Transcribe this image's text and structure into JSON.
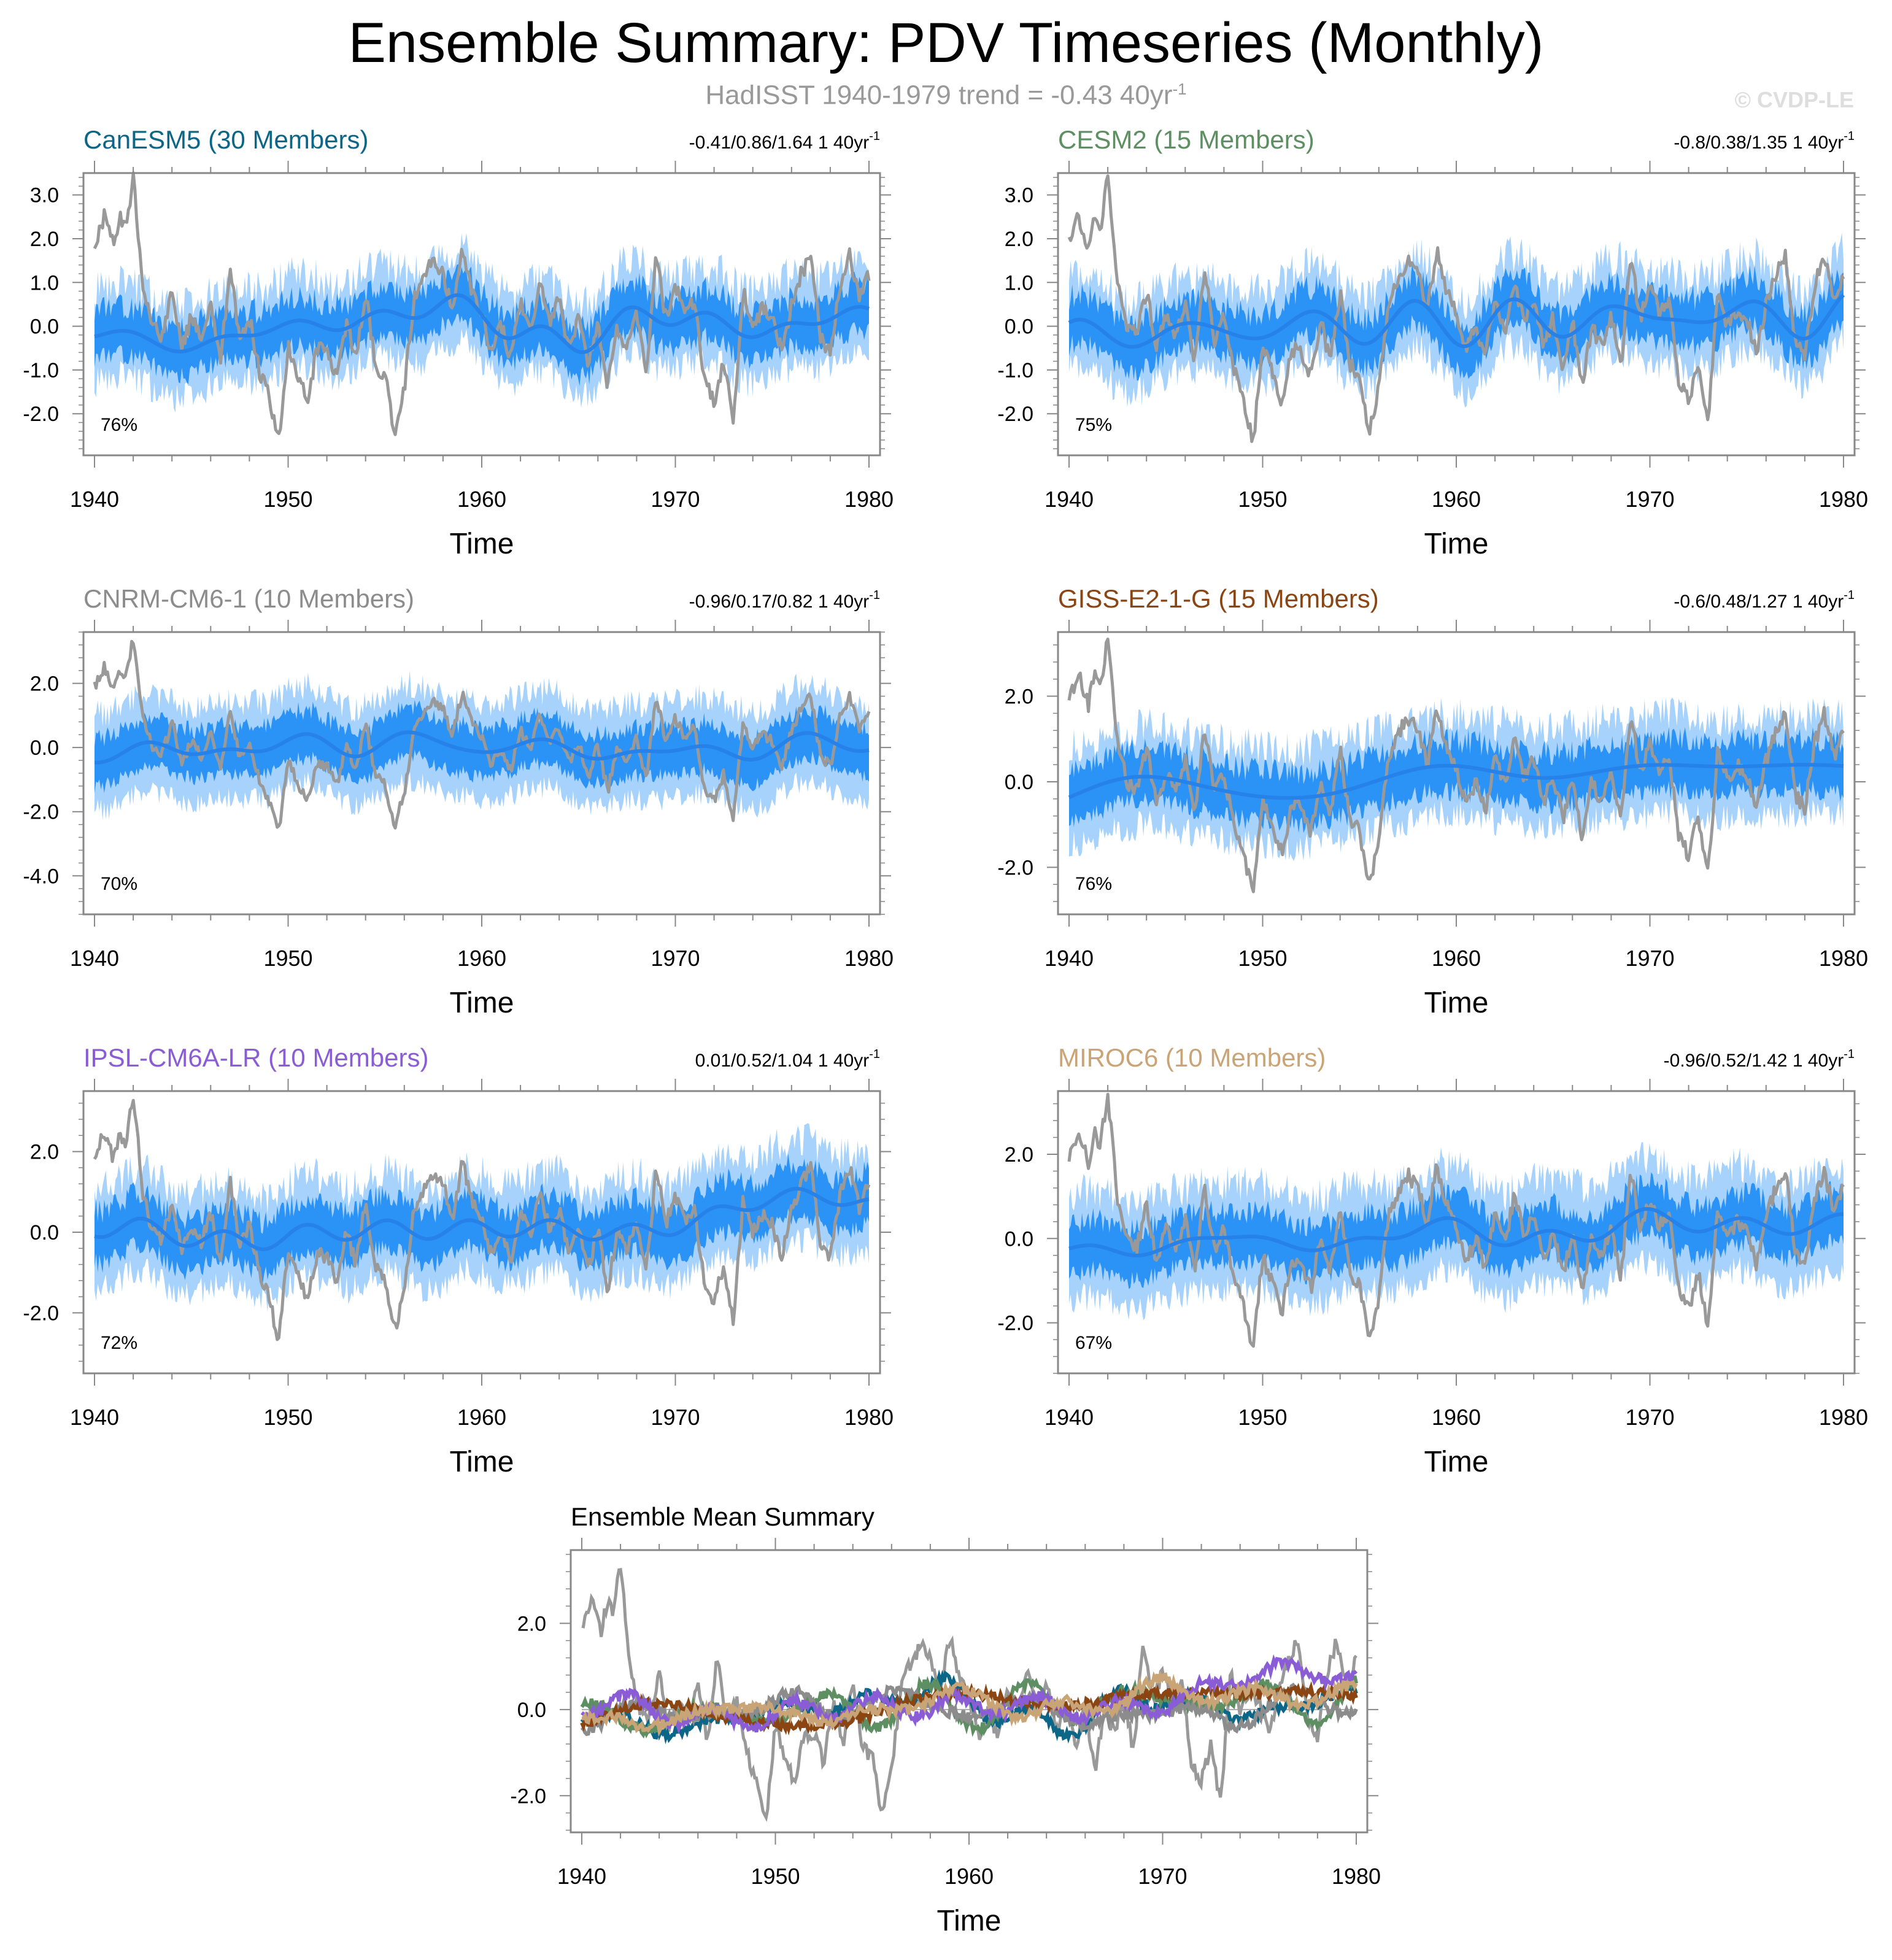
{
  "header": {
    "title": "Ensemble Summary: PDV Timeseries (Monthly)",
    "subtitle": "HadISST 1940-1979 trend = -0.43 40yr",
    "subtitle_sup": "-1",
    "copyright": "© CVDP-LE"
  },
  "colors": {
    "observations": "#999999",
    "band_outer": "#a7d2fb",
    "band_inner": "#2b92f6",
    "ens_mean": "#2681e8",
    "zero_line": "#aaaaaa"
  },
  "chart_data": [
    {
      "type": "line",
      "id": "canesm5",
      "title": "CanESM5 (30 Members)",
      "title_color": "#0b6688",
      "trend_text": "-0.41/0.86/1.64 1 40yr",
      "trend_sup": "-1",
      "percent_label": "76%",
      "xlabel": "Time",
      "xlim": [
        1940,
        1980
      ],
      "xticks": [
        1940,
        1950,
        1960,
        1970,
        1980
      ],
      "xtick_labels": [
        "1940",
        "1950",
        "1960",
        "1970",
        "1980"
      ],
      "ylim": [
        -2.95,
        3.5
      ],
      "yticks": [
        3.0,
        2.0,
        1.0,
        0.0,
        -1.0,
        -2.0
      ],
      "ytick_labels": [
        "3.0",
        "2.0",
        "1.0",
        "0.0",
        "-1.0",
        "-2.0"
      ],
      "ens_mean_trend": [
        -0.25,
        0.3
      ],
      "inner_halfwidth": 0.55,
      "outer_halfwidth": 1.05,
      "seed": 11
    },
    {
      "type": "line",
      "id": "cesm2",
      "title": "CESM2 (15 Members)",
      "title_color": "#5d8f62",
      "trend_text": "-0.8/0.38/1.35 1 40yr",
      "trend_sup": "-1",
      "percent_label": "75%",
      "xlabel": "Time",
      "xlim": [
        1940,
        1980
      ],
      "xticks": [
        1940,
        1950,
        1960,
        1970,
        1980
      ],
      "xtick_labels": [
        "1940",
        "1950",
        "1960",
        "1970",
        "1980"
      ],
      "ylim": [
        -2.95,
        3.5
      ],
      "yticks": [
        3.0,
        2.0,
        1.0,
        0.0,
        -1.0,
        -2.0
      ],
      "ytick_labels": [
        "3.0",
        "2.0",
        "1.0",
        "0.0",
        "-1.0",
        "-2.0"
      ],
      "ens_mean_trend": [
        -0.15,
        0.3
      ],
      "inner_halfwidth": 0.55,
      "outer_halfwidth": 1.05,
      "seed": 23
    },
    {
      "type": "line",
      "id": "cnrm",
      "title": "CNRM-CM6-1 (10 Members)",
      "title_color": "#8c8c8c",
      "trend_text": "-0.96/0.17/0.82 1 40yr",
      "trend_sup": "-1",
      "percent_label": "70%",
      "xlabel": "Time",
      "xlim": [
        1940,
        1980
      ],
      "xticks": [
        1940,
        1950,
        1960,
        1970,
        1980
      ],
      "xtick_labels": [
        "1940",
        "1950",
        "1960",
        "1970",
        "1980"
      ],
      "ylim": [
        -5.2,
        3.6
      ],
      "yticks": [
        2.0,
        0.0,
        -2.0,
        -4.0
      ],
      "ytick_labels": [
        "2.0",
        "0.0",
        "-2.0",
        "-4.0"
      ],
      "ens_mean_trend": [
        -0.1,
        0.1
      ],
      "inner_halfwidth": 0.75,
      "outer_halfwidth": 1.5,
      "seed": 37
    },
    {
      "type": "line",
      "id": "giss",
      "title": "GISS-E2-1-G (15 Members)",
      "title_color": "#8b4513",
      "trend_text": "-0.6/0.48/1.27 1 40yr",
      "trend_sup": "-1",
      "percent_label": "76%",
      "xlabel": "Time",
      "xlim": [
        1940,
        1980
      ],
      "xticks": [
        1940,
        1950,
        1960,
        1970,
        1980
      ],
      "xtick_labels": [
        "1940",
        "1950",
        "1960",
        "1970",
        "1980"
      ],
      "ylim": [
        -3.1,
        3.5
      ],
      "yticks": [
        2.0,
        0.0,
        -2.0
      ],
      "ytick_labels": [
        "2.0",
        "0.0",
        "-2.0"
      ],
      "ens_mean_trend": [
        -0.25,
        0.45
      ],
      "inner_halfwidth": 0.6,
      "outer_halfwidth": 1.15,
      "seed": 41
    },
    {
      "type": "line",
      "id": "ipsl",
      "title": "IPSL-CM6A-LR (10 Members)",
      "title_color": "#8a5cd6",
      "trend_text": "0.01/0.52/1.04 1 40yr",
      "trend_sup": "-1",
      "percent_label": "72%",
      "xlabel": "Time",
      "xlim": [
        1940,
        1980
      ],
      "xticks": [
        1940,
        1950,
        1960,
        1970,
        1980
      ],
      "xtick_labels": [
        "1940",
        "1950",
        "1960",
        "1970",
        "1980"
      ],
      "ylim": [
        -3.5,
        3.5
      ],
      "yticks": [
        2.0,
        0.0,
        -2.0
      ],
      "ytick_labels": [
        "2.0",
        "0.0",
        "-2.0"
      ],
      "ens_mean_trend": [
        -0.3,
        0.55
      ],
      "inner_halfwidth": 0.65,
      "outer_halfwidth": 1.25,
      "seed": 53
    },
    {
      "type": "line",
      "id": "miroc6",
      "title": "MIROC6 (10 Members)",
      "title_color": "#c9a477",
      "trend_text": "-0.96/0.52/1.42 1 40yr",
      "trend_sup": "-1",
      "percent_label": "67%",
      "xlabel": "Time",
      "xlim": [
        1940,
        1980
      ],
      "xticks": [
        1940,
        1950,
        1960,
        1970,
        1980
      ],
      "xtick_labels": [
        "1940",
        "1950",
        "1960",
        "1970",
        "1980"
      ],
      "ylim": [
        -3.2,
        3.5
      ],
      "yticks": [
        2.0,
        0.0,
        -2.0
      ],
      "ytick_labels": [
        "2.0",
        "0.0",
        "-2.0"
      ],
      "ens_mean_trend": [
        -0.25,
        0.45
      ],
      "inner_halfwidth": 0.6,
      "outer_halfwidth": 1.25,
      "seed": 67
    },
    {
      "type": "line",
      "id": "summary",
      "title": "Ensemble Mean Summary",
      "title_color": "#000000",
      "xlabel": "Time",
      "xlim": [
        1940,
        1980
      ],
      "xticks": [
        1940,
        1950,
        1960,
        1970,
        1980
      ],
      "xtick_labels": [
        "1940",
        "1950",
        "1960",
        "1970",
        "1980"
      ],
      "ylim": [
        -2.85,
        3.7
      ],
      "yticks": [
        2.0,
        0.0,
        -2.0
      ],
      "ytick_labels": [
        "2.0",
        "0.0",
        "-2.0"
      ],
      "series": [
        {
          "name": "CanESM5",
          "color": "#0b6688",
          "seed": 11,
          "trend": [
            -0.25,
            0.3
          ]
        },
        {
          "name": "CESM2",
          "color": "#5d8f62",
          "seed": 23,
          "trend": [
            -0.15,
            0.3
          ]
        },
        {
          "name": "CNRM-CM6-1",
          "color": "#8c8c8c",
          "seed": 37,
          "trend": [
            -0.1,
            0.1
          ]
        },
        {
          "name": "GISS-E2-1-G",
          "color": "#8b4513",
          "seed": 41,
          "trend": [
            -0.25,
            0.45
          ]
        },
        {
          "name": "IPSL-CM6A-LR",
          "color": "#8a5cd6",
          "seed": 53,
          "trend": [
            -0.3,
            0.55
          ]
        },
        {
          "name": "MIROC6",
          "color": "#c9a477",
          "seed": 67,
          "trend": [
            -0.25,
            0.45
          ]
        }
      ]
    }
  ],
  "observations": {
    "name": "HadISST",
    "years": [
      1940.0,
      1940.5,
      1941.0,
      1941.3,
      1941.6,
      1942.0,
      1942.5,
      1943.0,
      1943.5,
      1944.0,
      1944.5,
      1945.0,
      1945.5,
      1946.0,
      1946.5,
      1947.0,
      1947.5,
      1948.0,
      1948.5,
      1949.0,
      1949.5,
      1950.0,
      1950.5,
      1951.0,
      1951.5,
      1952.0,
      1952.5,
      1953.0,
      1953.5,
      1954.0,
      1954.5,
      1955.0,
      1955.5,
      1956.0,
      1956.5,
      1957.0,
      1957.5,
      1958.0,
      1958.5,
      1959.0,
      1959.5,
      1960.0,
      1960.5,
      1961.0,
      1961.5,
      1962.0,
      1962.5,
      1963.0,
      1963.5,
      1964.0,
      1964.5,
      1965.0,
      1965.5,
      1966.0,
      1966.5,
      1967.0,
      1967.5,
      1968.0,
      1968.5,
      1969.0,
      1969.5,
      1970.0,
      1970.5,
      1971.0,
      1971.5,
      1972.0,
      1972.5,
      1973.0,
      1973.5,
      1974.0,
      1974.5,
      1975.0,
      1975.5,
      1976.0,
      1976.5,
      1977.0,
      1977.5,
      1978.0,
      1978.5,
      1979.0,
      1979.5,
      1980.0
    ],
    "values": [
      1.9,
      2.5,
      1.8,
      2.5,
      2.2,
      3.4,
      1.0,
      0.0,
      -0.2,
      0.8,
      -0.5,
      0.2,
      -0.3,
      0.5,
      -0.8,
      1.3,
      -0.3,
      0.2,
      -1.0,
      -1.6,
      -2.7,
      -0.4,
      -1.1,
      -1.7,
      -0.5,
      -0.6,
      -1.2,
      0.1,
      -0.8,
      0.8,
      -0.9,
      -1.1,
      -2.5,
      -1.4,
      0.6,
      1.1,
      1.5,
      1.2,
      0.4,
      1.7,
      0.8,
      0.3,
      -0.6,
      0.0,
      -0.7,
      0.6,
      -0.1,
      1.0,
      0.1,
      0.6,
      -0.5,
      0.2,
      -0.9,
      0.1,
      -1.4,
      0.0,
      -0.5,
      0.3,
      -1.0,
      1.6,
      0.2,
      0.9,
      0.3,
      0.6,
      -1.3,
      -1.7,
      -0.8,
      -2.2,
      0.8,
      0.0,
      0.4,
      0.2,
      -0.6,
      0.5,
      1.2,
      1.6,
      -0.3,
      -0.6,
      0.9,
      1.6,
      0.6,
      1.2
    ]
  }
}
